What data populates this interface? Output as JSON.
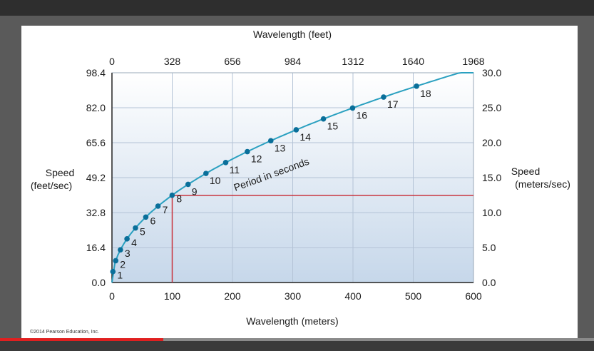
{
  "video": {
    "progress_fraction": 0.275
  },
  "copyright": "©2014 Pearson Education, Inc.",
  "colors": {
    "plot_top": "#ffffff",
    "plot_bottom": "#c6d7ea",
    "curve": "#2aa0c0",
    "points": "#0a6f9a",
    "reference": "#c8323c",
    "grid": "#b4c3d6"
  },
  "chart_data": {
    "type": "scatter",
    "xlabel_bottom": "Wavelength (meters)",
    "xlabel_top": "Wavelength (feet)",
    "ylabel_left": [
      "Speed",
      "(feet/sec)"
    ],
    "ylabel_right": [
      "Speed",
      "(meters/sec)"
    ],
    "curve_label": "Period in seconds",
    "x_bottom_ticks": [
      "0",
      "100",
      "200",
      "300",
      "400",
      "500",
      "600"
    ],
    "x_top_ticks": [
      "0",
      "328",
      "656",
      "984",
      "1312",
      "1640",
      "1968"
    ],
    "y_left_ticks": [
      "0.0",
      "16.4",
      "32.8",
      "49.2",
      "65.6",
      "82.0",
      "98.4"
    ],
    "y_right_ticks": [
      "0.0",
      "5.0",
      "10.0",
      "15.0",
      "20.0",
      "25.0",
      "30.0"
    ],
    "xlim": [
      0,
      600
    ],
    "ylim": [
      0,
      30
    ],
    "grid": true,
    "series": [
      {
        "labels": [
          "1",
          "2",
          "3",
          "4",
          "5",
          "6",
          "7",
          "8",
          "9",
          "10",
          "11",
          "12",
          "13",
          "14",
          "15",
          "16",
          "17",
          "18"
        ],
        "x": [
          1.56,
          6.24,
          14.04,
          24.96,
          39.0,
          56.16,
          76.44,
          99.84,
          126.36,
          156.0,
          188.76,
          224.64,
          263.64,
          305.76,
          351.0,
          399.36,
          450.84,
          505.44
        ],
        "y": [
          1.56,
          3.12,
          4.68,
          6.24,
          7.8,
          9.36,
          10.92,
          12.48,
          14.04,
          15.6,
          17.16,
          18.72,
          20.28,
          21.84,
          23.4,
          24.96,
          26.52,
          28.08
        ]
      }
    ],
    "reference_point": {
      "x": 100,
      "y": 12.48
    }
  }
}
